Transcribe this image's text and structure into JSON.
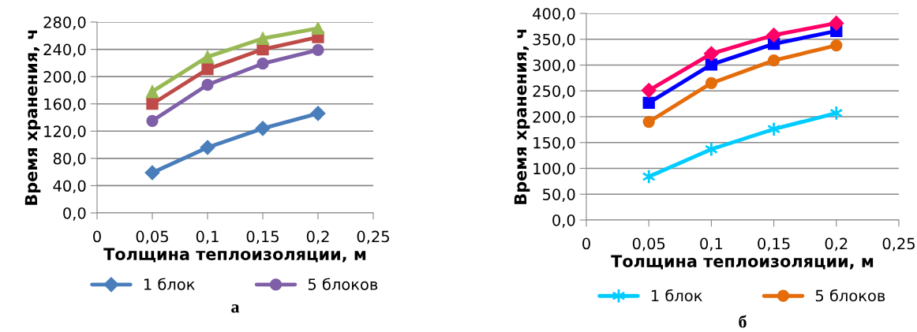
{
  "chart_data": [
    {
      "type": "line",
      "xlabel": "Толщина теплоизоляции, м",
      "ylabel": "Время хранения, ч",
      "annotations": [
        "а"
      ],
      "x": [
        0.05,
        0.1,
        0.15,
        0.2
      ],
      "series": [
        {
          "name": "1 блок",
          "color": "#4a7ebb",
          "marker": "diamond",
          "values": [
            59,
            96,
            124,
            146
          ]
        },
        {
          "name": "5 блоков",
          "color": "#7f5fa8",
          "marker": "circle",
          "values": [
            135,
            188,
            219,
            239
          ]
        },
        {
          "color": "#be4b48",
          "marker": "square",
          "values": [
            160,
            211,
            240,
            258
          ]
        },
        {
          "color": "#98b954",
          "marker": "triangle",
          "values": [
            178,
            229,
            256,
            271
          ]
        }
      ],
      "xlim": [
        0,
        0.25
      ],
      "xticks": [
        0,
        {
          "value": 0.05,
          "label": "0,05"
        },
        {
          "value": 0.1,
          "label": "0,1"
        },
        {
          "value": 0.15,
          "label": "0,15"
        },
        {
          "value": 0.2,
          "label": "0,2"
        },
        {
          "value": 0.25,
          "label": "0,25"
        }
      ],
      "ylim": [
        0,
        280
      ],
      "yticks": [
        {
          "value": 0,
          "label": "0,0"
        },
        {
          "value": 40,
          "label": "40,0"
        },
        {
          "value": 80,
          "label": "80,0"
        },
        {
          "value": 120,
          "label": "120,0"
        },
        {
          "value": 160,
          "label": "160,0"
        },
        {
          "value": 200,
          "label": "200,0"
        },
        {
          "value": 240,
          "label": "240,0"
        },
        {
          "value": 280,
          "label": "280,0"
        }
      ],
      "grid": "y",
      "legend": "bottom"
    },
    {
      "type": "line",
      "xlabel": "Толщина теплоизоляции, м",
      "ylabel": "Время хранения, ч",
      "annotations": [
        "б"
      ],
      "x": [
        0.05,
        0.1,
        0.15,
        0.2
      ],
      "series": [
        {
          "name": "1 блок",
          "color": "#00ccff",
          "marker": "cross",
          "values": [
            84,
            137,
            176,
            207
          ]
        },
        {
          "name": "5 блоков",
          "color": "#e46c0a",
          "marker": "circle",
          "values": [
            190,
            265,
            309,
            338
          ]
        },
        {
          "color": "#0000ff",
          "marker": "square",
          "values": [
            227,
            301,
            341,
            366
          ]
        },
        {
          "color": "#ff0066",
          "marker": "diamond",
          "values": [
            251,
            322,
            358,
            381
          ]
        }
      ],
      "xlim": [
        0,
        0.25
      ],
      "xticks": [
        0,
        {
          "value": 0.05,
          "label": "0,05"
        },
        {
          "value": 0.1,
          "label": "0,1"
        },
        {
          "value": 0.15,
          "label": "0,15"
        },
        {
          "value": 0.2,
          "label": "0,2"
        },
        {
          "value": 0.25,
          "label": "0,25"
        }
      ],
      "ylim": [
        0,
        400
      ],
      "yticks": [
        {
          "value": 0,
          "label": "0,0"
        },
        {
          "value": 50,
          "label": "50,0"
        },
        {
          "value": 100,
          "label": "100,0"
        },
        {
          "value": 150,
          "label": "150,0"
        },
        {
          "value": 200,
          "label": "200,0"
        },
        {
          "value": 250,
          "label": "250,0"
        },
        {
          "value": 300,
          "label": "300,0"
        },
        {
          "value": 350,
          "label": "350,0"
        },
        {
          "value": 400,
          "label": "400,0"
        }
      ],
      "grid": "y",
      "legend": "bottom"
    }
  ]
}
